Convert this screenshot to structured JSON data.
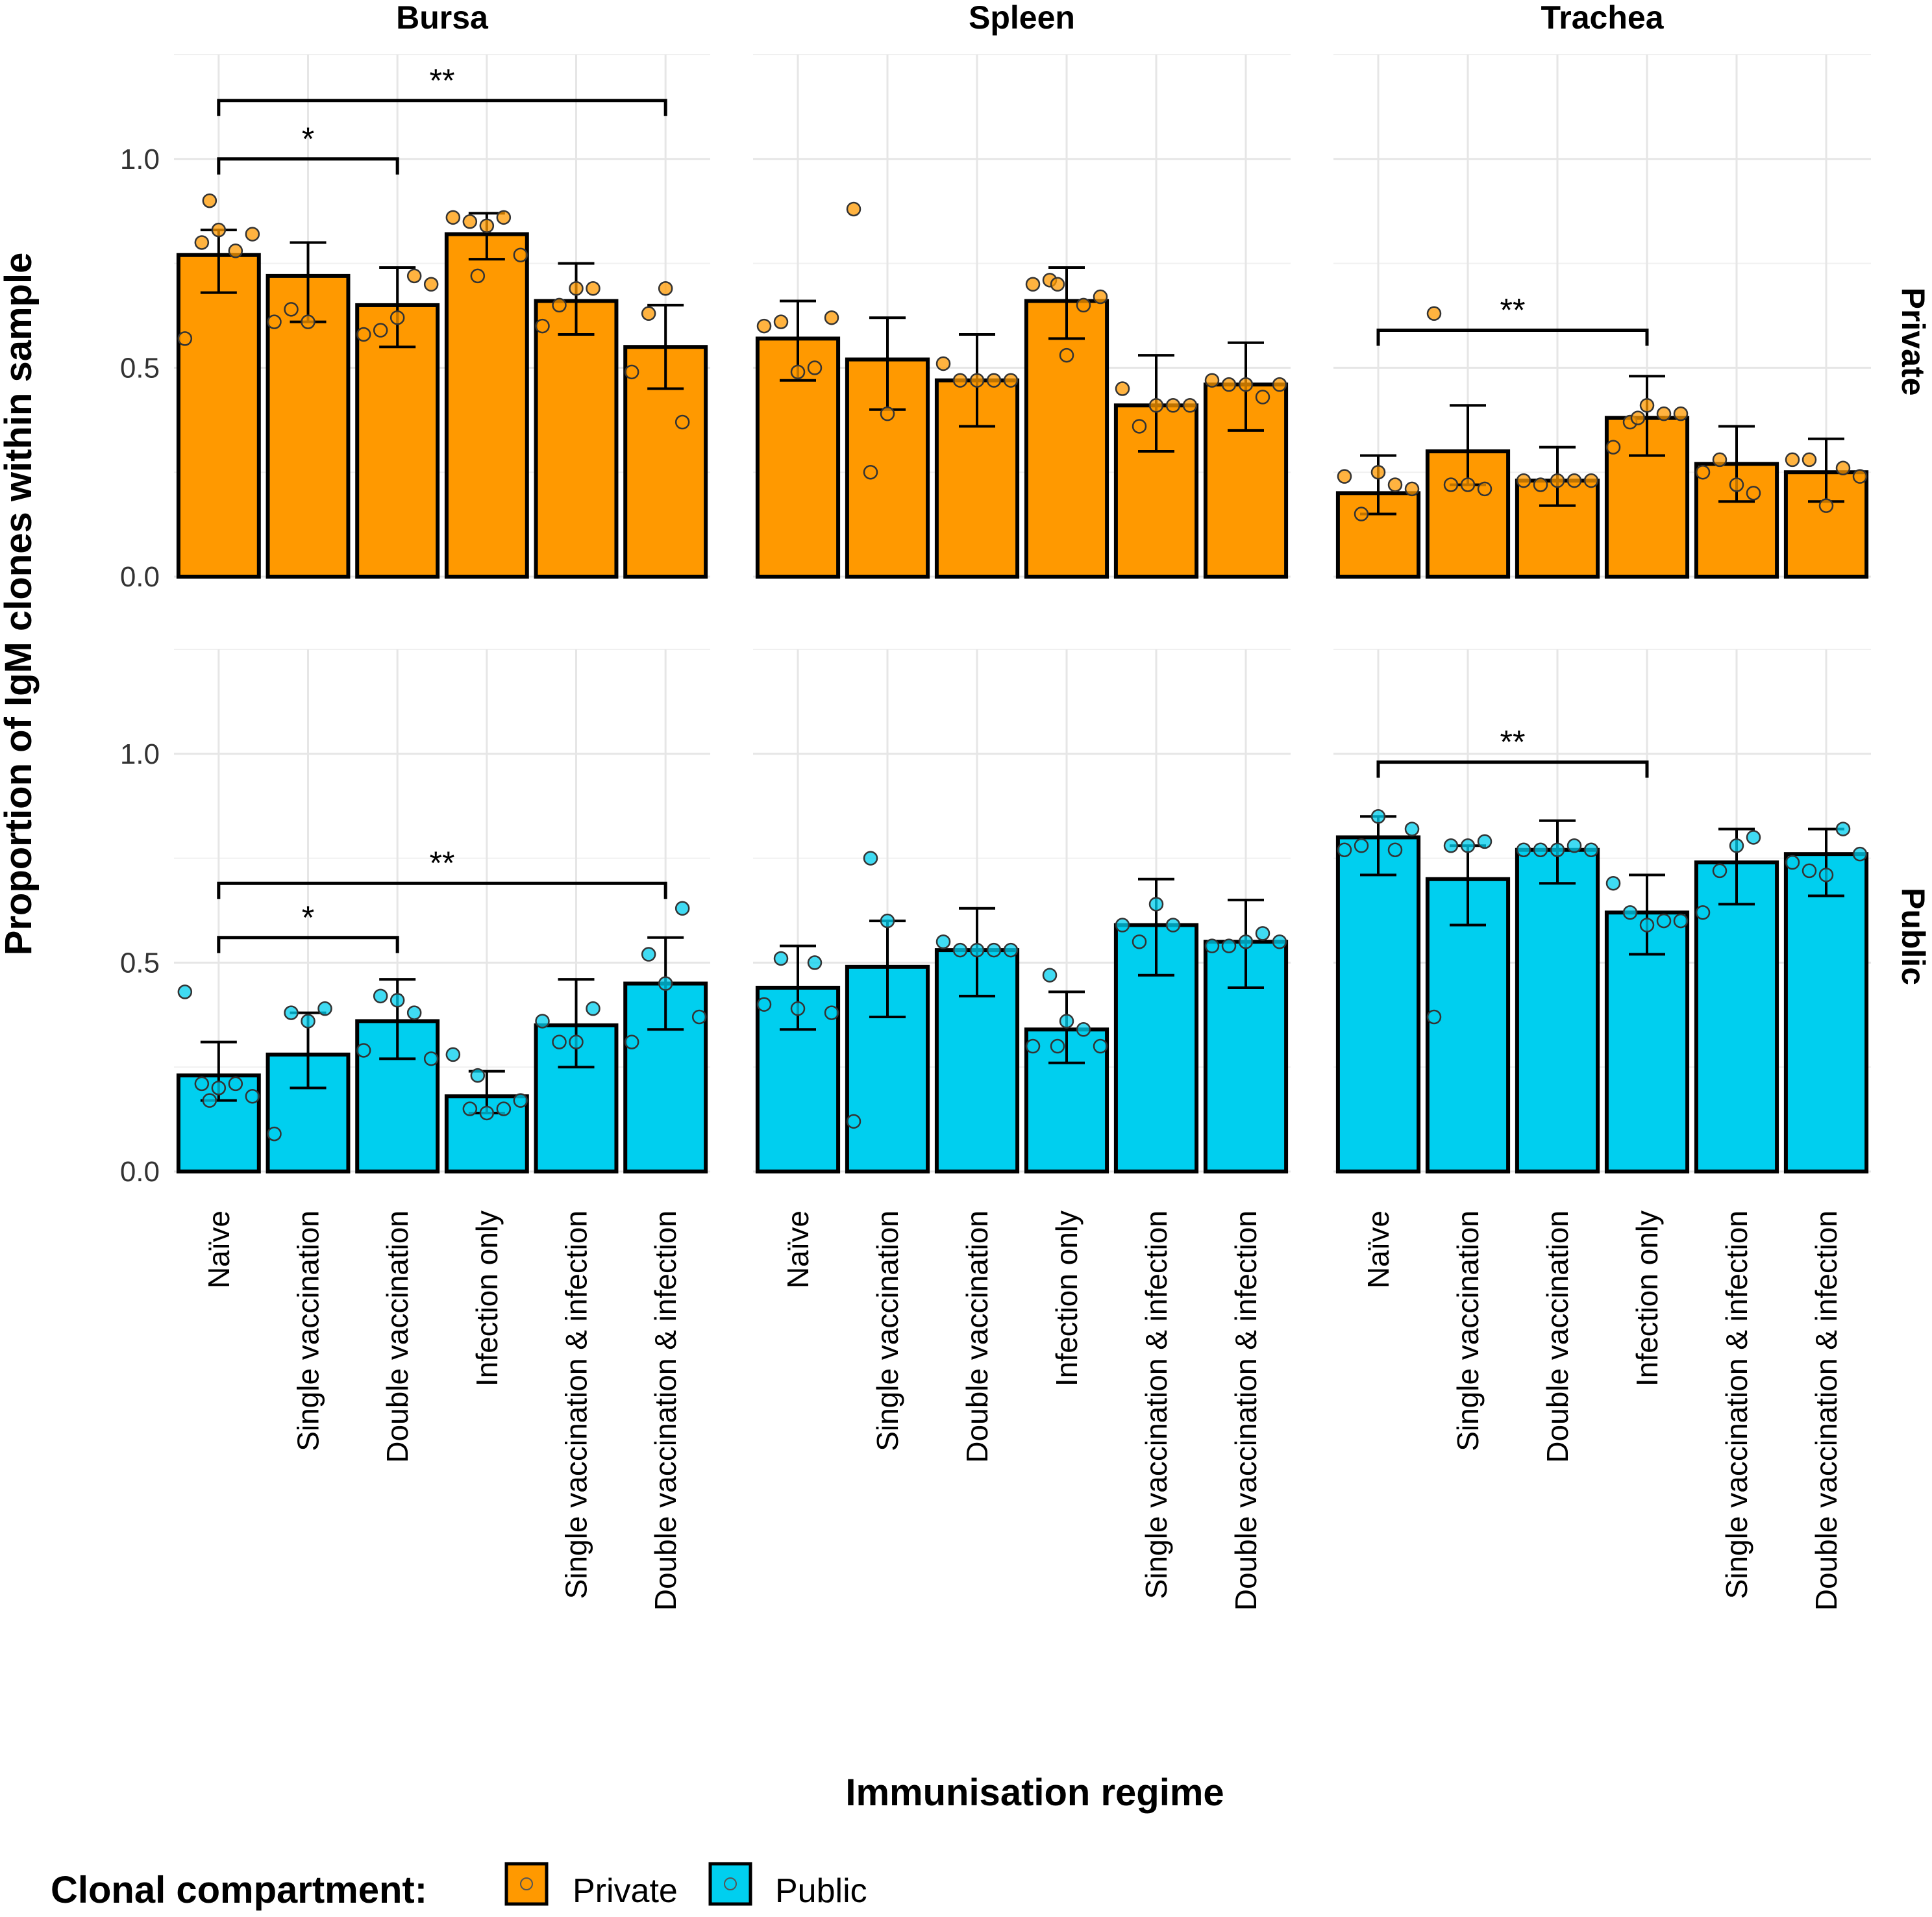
{
  "chart_data": {
    "type": "bar",
    "x_title": "Immunisation regime",
    "y_title": "Proportion of IgM clones within sample",
    "categories": [
      "Naïve",
      "Single vaccination",
      "Double vaccination",
      "Infection only",
      "Single vaccination & infection",
      "Double vaccination & infection"
    ],
    "y_ticks": [
      "0.0",
      "0.5",
      "1.0"
    ],
    "ylim": [
      0,
      1.25
    ],
    "columns": [
      "Bursa",
      "Spleen",
      "Trachea"
    ],
    "rows": [
      "Private",
      "Public"
    ],
    "colors": {
      "Private": "#FF9900",
      "Public": "#00CFEF"
    },
    "legend": {
      "title": "Clonal compartment:",
      "items": [
        "Private",
        "Public"
      ]
    },
    "panels": [
      {
        "tissue": "Bursa",
        "compartment": "Private",
        "values": [
          0.77,
          0.72,
          0.65,
          0.82,
          0.66,
          0.55
        ],
        "err_low": [
          0.68,
          0.61,
          0.55,
          0.76,
          0.58,
          0.45
        ],
        "err_high": [
          0.83,
          0.8,
          0.74,
          0.87,
          0.75,
          0.65
        ],
        "points": [
          [
            0.57,
            0.8,
            0.83,
            0.78,
            0.82,
            0.9
          ],
          [
            0.61,
            0.64,
            0.61
          ],
          [
            0.58,
            0.59,
            0.62,
            0.72,
            0.7
          ],
          [
            0.86,
            0.85,
            0.84,
            0.86,
            0.77,
            0.72
          ],
          [
            0.6,
            0.65,
            0.69,
            0.69
          ],
          [
            0.49,
            0.63,
            0.69,
            0.37
          ]
        ],
        "sig": [
          {
            "from": 0,
            "to": 2,
            "label": "*",
            "y": 1.0
          },
          {
            "from": 0,
            "to": 5,
            "label": "**",
            "y": 1.14
          }
        ]
      },
      {
        "tissue": "Spleen",
        "compartment": "Private",
        "values": [
          0.57,
          0.52,
          0.47,
          0.66,
          0.41,
          0.46
        ],
        "err_low": [
          0.47,
          0.4,
          0.36,
          0.57,
          0.3,
          0.35
        ],
        "err_high": [
          0.66,
          0.62,
          0.58,
          0.74,
          0.53,
          0.56
        ],
        "points": [
          [
            0.6,
            0.61,
            0.49,
            0.5,
            0.62
          ],
          [
            0.88,
            0.25,
            0.39
          ],
          [
            0.51,
            0.47,
            0.47,
            0.47,
            0.47
          ],
          [
            0.7,
            0.71,
            0.53,
            0.65,
            0.67,
            0.7
          ],
          [
            0.45,
            0.36,
            0.41,
            0.41,
            0.41
          ],
          [
            0.47,
            0.46,
            0.46,
            0.43,
            0.46
          ]
        ],
        "sig": []
      },
      {
        "tissue": "Trachea",
        "compartment": "Private",
        "values": [
          0.2,
          0.3,
          0.23,
          0.38,
          0.27,
          0.25
        ],
        "err_low": [
          0.15,
          0.22,
          0.17,
          0.29,
          0.18,
          0.18
        ],
        "err_high": [
          0.29,
          0.41,
          0.31,
          0.48,
          0.36,
          0.33
        ],
        "points": [
          [
            0.24,
            0.15,
            0.25,
            0.22,
            0.21
          ],
          [
            0.63,
            0.22,
            0.22,
            0.21
          ],
          [
            0.23,
            0.22,
            0.23,
            0.23,
            0.23
          ],
          [
            0.31,
            0.37,
            0.41,
            0.39,
            0.39,
            0.38
          ],
          [
            0.25,
            0.28,
            0.22,
            0.2
          ],
          [
            0.28,
            0.28,
            0.17,
            0.26,
            0.24
          ]
        ],
        "sig": [
          {
            "from": 0,
            "to": 3,
            "label": "**",
            "y": 0.59
          }
        ]
      },
      {
        "tissue": "Bursa",
        "compartment": "Public",
        "values": [
          0.23,
          0.28,
          0.36,
          0.18,
          0.35,
          0.45
        ],
        "err_low": [
          0.17,
          0.2,
          0.27,
          0.14,
          0.25,
          0.34
        ],
        "err_high": [
          0.31,
          0.38,
          0.46,
          0.24,
          0.46,
          0.56
        ],
        "points": [
          [
            0.43,
            0.21,
            0.2,
            0.21,
            0.18,
            0.17
          ],
          [
            0.09,
            0.38,
            0.36,
            0.39
          ],
          [
            0.29,
            0.42,
            0.41,
            0.38,
            0.27
          ],
          [
            0.28,
            0.15,
            0.14,
            0.15,
            0.17,
            0.23
          ],
          [
            0.36,
            0.31,
            0.31,
            0.39
          ],
          [
            0.31,
            0.52,
            0.45,
            0.63,
            0.37
          ]
        ],
        "sig": [
          {
            "from": 0,
            "to": 2,
            "label": "*",
            "y": 0.56
          },
          {
            "from": 0,
            "to": 5,
            "label": "**",
            "y": 0.69
          }
        ]
      },
      {
        "tissue": "Spleen",
        "compartment": "Public",
        "values": [
          0.44,
          0.49,
          0.53,
          0.34,
          0.59,
          0.55
        ],
        "err_low": [
          0.34,
          0.37,
          0.42,
          0.26,
          0.47,
          0.44
        ],
        "err_high": [
          0.54,
          0.6,
          0.63,
          0.43,
          0.7,
          0.65
        ],
        "points": [
          [
            0.4,
            0.51,
            0.39,
            0.5,
            0.38
          ],
          [
            0.12,
            0.75,
            0.6
          ],
          [
            0.55,
            0.53,
            0.53,
            0.53,
            0.53
          ],
          [
            0.3,
            0.47,
            0.36,
            0.34,
            0.3,
            0.3
          ],
          [
            0.59,
            0.55,
            0.64,
            0.59
          ],
          [
            0.54,
            0.54,
            0.55,
            0.57,
            0.55
          ]
        ],
        "sig": []
      },
      {
        "tissue": "Trachea",
        "compartment": "Public",
        "values": [
          0.8,
          0.7,
          0.77,
          0.62,
          0.74,
          0.76
        ],
        "err_low": [
          0.71,
          0.59,
          0.69,
          0.52,
          0.64,
          0.66
        ],
        "err_high": [
          0.85,
          0.78,
          0.84,
          0.71,
          0.82,
          0.82
        ],
        "points": [
          [
            0.77,
            0.78,
            0.85,
            0.77,
            0.82
          ],
          [
            0.37,
            0.78,
            0.78,
            0.79
          ],
          [
            0.77,
            0.77,
            0.77,
            0.78,
            0.77
          ],
          [
            0.69,
            0.62,
            0.59,
            0.6,
            0.6
          ],
          [
            0.62,
            0.72,
            0.78,
            0.8
          ],
          [
            0.74,
            0.72,
            0.71,
            0.82,
            0.76
          ]
        ],
        "sig": [
          {
            "from": 0,
            "to": 3,
            "label": "**",
            "y": 0.98
          }
        ]
      }
    ]
  }
}
